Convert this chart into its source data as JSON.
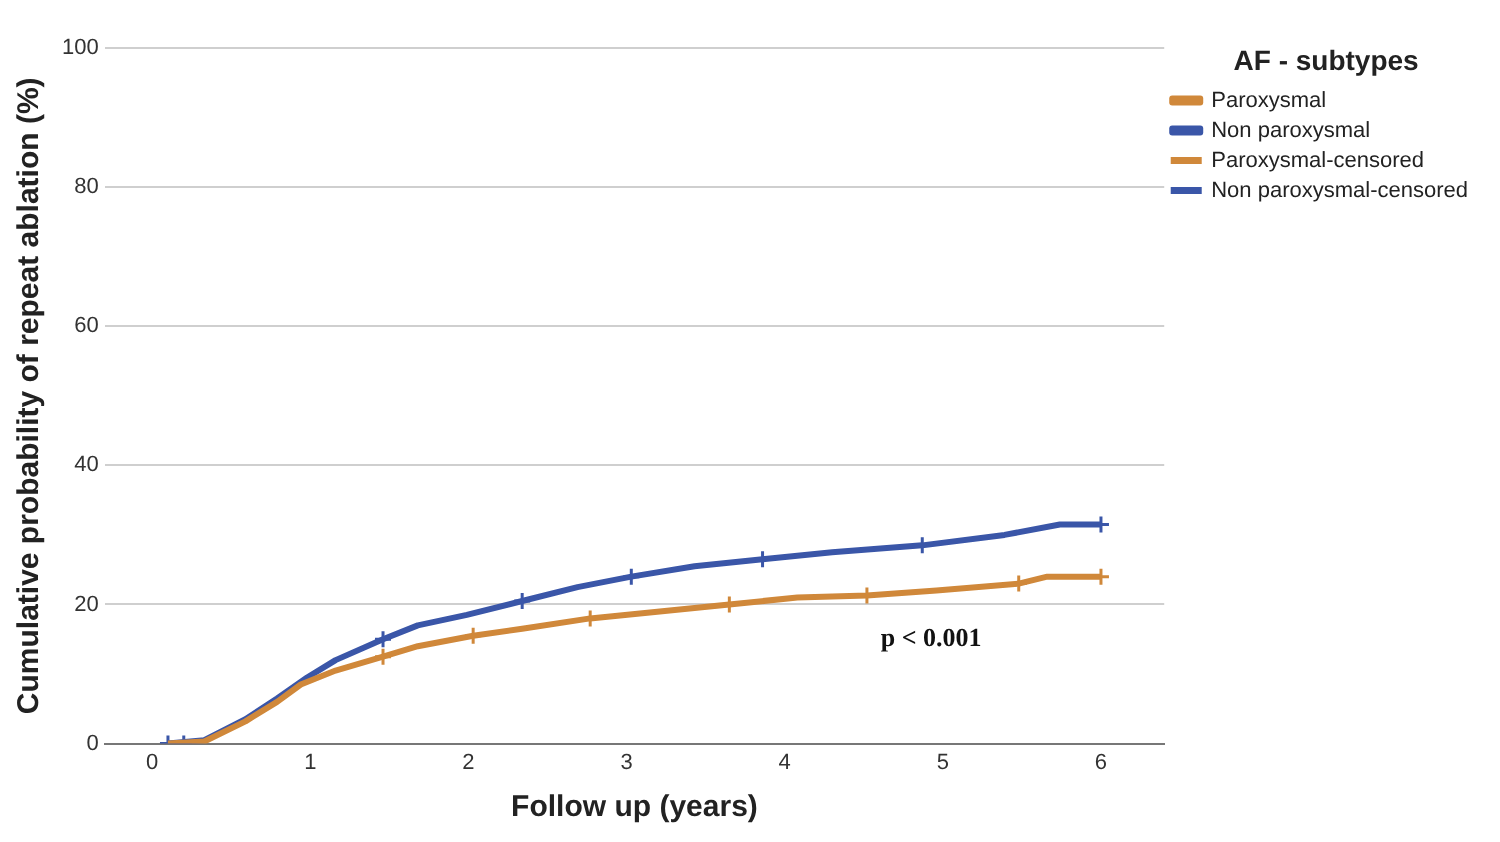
{
  "chart_data": {
    "type": "line",
    "xlabel": "Follow up (years)",
    "ylabel": "Cumulative probability of repeat ablation (%)",
    "legend_title": "AF - subtypes",
    "xlim": [
      -0.3,
      6.4
    ],
    "xticks": [
      0,
      1,
      2,
      3,
      4,
      5,
      6
    ],
    "ylim": [
      0,
      100
    ],
    "yticks": [
      0,
      20,
      40,
      60,
      80,
      100
    ],
    "grid": "y",
    "legend": "top right",
    "annotations": [
      "p < 0.001"
    ],
    "series": [
      {
        "name": "Paroxysmal",
        "color": "#d0883a",
        "x": [
          0.1,
          0.33,
          0.59,
          0.79,
          0.94,
          1.16,
          1.46,
          1.68,
          2.03,
          2.34,
          2.77,
          3.21,
          3.65,
          4.08,
          4.52,
          4.96,
          5.48,
          5.66,
          6.0
        ],
        "values": [
          0,
          0.3,
          3.2,
          6,
          8.5,
          10.5,
          12.5,
          14,
          15.5,
          16.5,
          18,
          19,
          20,
          21,
          21.3,
          22,
          23,
          24,
          24
        ]
      },
      {
        "name": "Non paroxysmal",
        "color": "#3a56a8",
        "x": [
          0.1,
          0.33,
          0.59,
          0.79,
          0.98,
          1.16,
          1.46,
          1.68,
          1.99,
          2.34,
          2.69,
          3.03,
          3.43,
          3.86,
          4.3,
          4.87,
          5.39,
          5.74,
          6.0
        ],
        "values": [
          0,
          0.5,
          3.5,
          6.5,
          9.5,
          12,
          15,
          17,
          18.5,
          20.5,
          22.5,
          24,
          25.5,
          26.5,
          27.5,
          28.5,
          30,
          31.5,
          31.5
        ]
      },
      {
        "name": "Paroxysmal-censored",
        "type": "scatter",
        "marker": "cross",
        "color": "#d0883a",
        "x": [
          1.46,
          2.03,
          2.77,
          3.65,
          4.52,
          5.48,
          6.0
        ],
        "values": [
          12.5,
          15.5,
          18,
          20,
          21.3,
          23,
          24
        ]
      },
      {
        "name": "Non paroxysmal-censored",
        "type": "scatter",
        "marker": "cross",
        "color": "#3a56a8",
        "x": [
          0.1,
          0.2,
          1.46,
          2.34,
          3.03,
          3.86,
          4.87,
          6.0
        ],
        "values": [
          0,
          0,
          15,
          20.5,
          24,
          26.5,
          28.5,
          31.5
        ]
      }
    ]
  }
}
